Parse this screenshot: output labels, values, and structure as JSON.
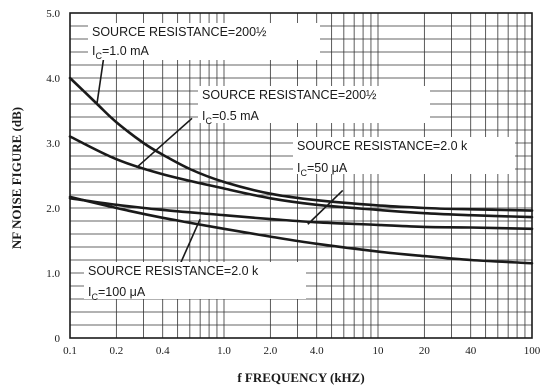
{
  "chart_data": {
    "type": "line",
    "title": "",
    "xlabel": "f  FREQUENCY (kHZ)",
    "ylabel": "NF NOISE FIGURE (dB)",
    "x_scale": "log",
    "xlim": [
      0.1,
      100
    ],
    "ylim": [
      0,
      5.0
    ],
    "grid": true,
    "x_ticks": [
      {
        "value": 0.1,
        "label": "0.1"
      },
      {
        "value": 0.2,
        "label": "0.2"
      },
      {
        "value": 0.4,
        "label": "0.4"
      },
      {
        "value": 1,
        "label": "1.0"
      },
      {
        "value": 2,
        "label": "2.0"
      },
      {
        "value": 4,
        "label": "4.0"
      },
      {
        "value": 10,
        "label": "10"
      },
      {
        "value": 20,
        "label": "20"
      },
      {
        "value": 40,
        "label": "40"
      },
      {
        "value": 100,
        "label": "100"
      }
    ],
    "y_ticks": [
      {
        "value": 0,
        "label": "0"
      },
      {
        "value": 1.0,
        "label": "1.0"
      },
      {
        "value": 2.0,
        "label": "2.0"
      },
      {
        "value": 3.0,
        "label": "3.0"
      },
      {
        "value": 4.0,
        "label": "4.0"
      },
      {
        "value": 5.0,
        "label": "5.0"
      }
    ],
    "series": [
      {
        "x": [
          0.1,
          0.15,
          0.2,
          0.3,
          0.4,
          0.6,
          1,
          2,
          4,
          10,
          20,
          40,
          100
        ],
        "y": [
          4.0,
          3.6,
          3.32,
          3.0,
          2.82,
          2.6,
          2.4,
          2.22,
          2.12,
          2.04,
          2.0,
          1.98,
          1.96
        ]
      },
      {
        "x": [
          0.1,
          0.2,
          0.4,
          1,
          2,
          4,
          10,
          20,
          40,
          100
        ],
        "y": [
          3.1,
          2.75,
          2.52,
          2.3,
          2.15,
          2.05,
          1.97,
          1.92,
          1.89,
          1.86
        ]
      },
      {
        "x": [
          0.1,
          0.2,
          0.4,
          1,
          2,
          4,
          10,
          20,
          40,
          100
        ],
        "y": [
          2.15,
          2.05,
          1.97,
          1.89,
          1.83,
          1.78,
          1.74,
          1.71,
          1.7,
          1.68
        ]
      },
      {
        "x": [
          0.1,
          0.2,
          0.4,
          1,
          2,
          4,
          10,
          20,
          40,
          100
        ],
        "y": [
          2.17,
          2.0,
          1.85,
          1.68,
          1.56,
          1.45,
          1.33,
          1.26,
          1.2,
          1.15
        ]
      }
    ],
    "annotations": [
      {
        "line1": "SOURCE RESISTANCE=200½",
        "ic_value": "=1.0 mA"
      },
      {
        "line1": "SOURCE RESISTANCE=200½",
        "ic_value": "=0.5 mA"
      },
      {
        "line1": "SOURCE RESISTANCE=2.0 k",
        "ic_value": "=50 μA"
      },
      {
        "line1": "SOURCE RESISTANCE=2.0 k",
        "ic_value": "=100 μA"
      }
    ],
    "ic_symbol": "I",
    "ic_subscript": "C"
  }
}
